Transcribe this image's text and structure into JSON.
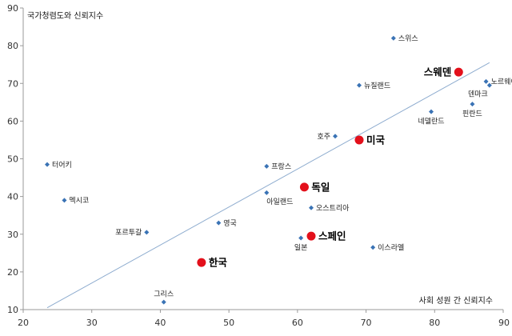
{
  "chart_data": {
    "type": "scatter",
    "ylabel": "국가청렴도와 신뢰지수",
    "xlabel": "사회 성원 간 신뢰지수",
    "xlim": [
      20,
      90
    ],
    "ylim": [
      10,
      90
    ],
    "xticks": [
      20,
      30,
      40,
      50,
      60,
      70,
      80,
      90
    ],
    "yticks": [
      10,
      20,
      30,
      40,
      50,
      60,
      70,
      80,
      90
    ],
    "grid": false,
    "colors": {
      "small_marker": "#3a73b5",
      "highlight_marker": "#e3101b",
      "trendline": "#8eaccf",
      "axis": "#999999"
    },
    "trendline": {
      "points": [
        [
          23.5,
          10.5
        ],
        [
          88,
          75.5
        ]
      ]
    },
    "points": [
      {
        "label": "스위스",
        "x": 74,
        "y": 82,
        "highlight": false,
        "label_pos": "right"
      },
      {
        "label": "스웨덴",
        "x": 83.5,
        "y": 73,
        "highlight": true,
        "label_pos": "left"
      },
      {
        "label": "노르웨이",
        "x": 87.5,
        "y": 70.5,
        "highlight": false,
        "label_pos": "right"
      },
      {
        "label": "덴마크",
        "x": 88,
        "y": 69.5,
        "highlight": false,
        "label_pos": "below-left"
      },
      {
        "label": "뉴질랜드",
        "x": 69,
        "y": 69.5,
        "highlight": false,
        "label_pos": "right"
      },
      {
        "label": "네델란드",
        "x": 79.5,
        "y": 62.5,
        "highlight": false,
        "label_pos": "below"
      },
      {
        "label": "핀란드",
        "x": 85.5,
        "y": 64.5,
        "highlight": false,
        "label_pos": "below"
      },
      {
        "label": "호주",
        "x": 65.5,
        "y": 56,
        "highlight": false,
        "label_pos": "left"
      },
      {
        "label": "미국",
        "x": 69,
        "y": 55,
        "highlight": true,
        "label_pos": "right"
      },
      {
        "label": "프랑스",
        "x": 55.5,
        "y": 48,
        "highlight": false,
        "label_pos": "right"
      },
      {
        "label": "독일",
        "x": 61,
        "y": 42.5,
        "highlight": true,
        "label_pos": "right"
      },
      {
        "label": "아일랜드",
        "x": 55.5,
        "y": 41,
        "highlight": false,
        "label_pos": "below-right"
      },
      {
        "label": "오스트리아",
        "x": 62,
        "y": 37,
        "highlight": false,
        "label_pos": "right"
      },
      {
        "label": "영국",
        "x": 48.5,
        "y": 33,
        "highlight": false,
        "label_pos": "right"
      },
      {
        "label": "포르투갈",
        "x": 38,
        "y": 30.5,
        "highlight": false,
        "label_pos": "left"
      },
      {
        "label": "일본",
        "x": 60.5,
        "y": 29,
        "highlight": false,
        "label_pos": "below"
      },
      {
        "label": "스페인",
        "x": 62,
        "y": 29.5,
        "highlight": true,
        "label_pos": "right"
      },
      {
        "label": "이스라엘",
        "x": 71,
        "y": 26.5,
        "highlight": false,
        "label_pos": "right"
      },
      {
        "label": "한국",
        "x": 46,
        "y": 22.5,
        "highlight": true,
        "label_pos": "right"
      },
      {
        "label": "그리스",
        "x": 40.5,
        "y": 12,
        "highlight": false,
        "label_pos": "above"
      },
      {
        "label": "터어키",
        "x": 23.5,
        "y": 48.5,
        "highlight": false,
        "label_pos": "right"
      },
      {
        "label": "멕시코",
        "x": 26,
        "y": 39,
        "highlight": false,
        "label_pos": "right"
      }
    ]
  }
}
